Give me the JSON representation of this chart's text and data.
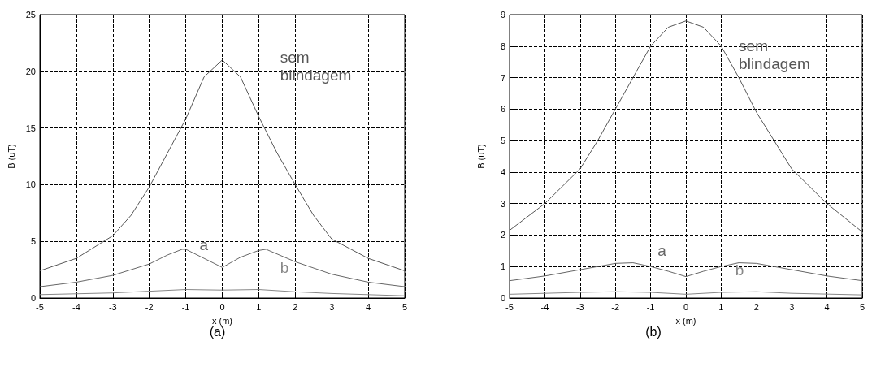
{
  "chart_data": [
    {
      "type": "line",
      "xlabel": "x (m)",
      "ylabel": "B (uT)",
      "xlim": [
        -5,
        5
      ],
      "xticks": [
        -5,
        -4,
        -3,
        -2,
        -1,
        0,
        1,
        2,
        3,
        4,
        5
      ],
      "ylim": [
        0,
        25
      ],
      "yticks": [
        0,
        5,
        10,
        15,
        20,
        25
      ],
      "grid": true,
      "marker": "none",
      "series": [
        {
          "name": "sem blindagem",
          "color": "#555555",
          "x": [
            -5,
            -4,
            -3,
            -2.5,
            -2,
            -1.5,
            -1,
            -0.5,
            0,
            0.5,
            1,
            1.5,
            2,
            2.5,
            3,
            4,
            5
          ],
          "values": [
            2.4,
            3.5,
            5.5,
            7.3,
            9.8,
            12.8,
            15.8,
            19.5,
            21,
            19.5,
            16,
            12.8,
            10,
            7.3,
            5.2,
            3.5,
            2.4
          ]
        },
        {
          "name": "a",
          "color": "#666666",
          "x": [
            -5,
            -4,
            -3,
            -2,
            -1.5,
            -1.1,
            -1,
            -0.5,
            0,
            0.5,
            1,
            1.2,
            2,
            3,
            4,
            5
          ],
          "values": [
            1.0,
            1.4,
            2.0,
            3.0,
            3.8,
            4.3,
            4.3,
            3.5,
            2.7,
            3.6,
            4.2,
            4.3,
            3.2,
            2.1,
            1.4,
            1.0
          ]
        },
        {
          "name": "b",
          "color": "#888888",
          "x": [
            -5,
            -3,
            -2,
            -1,
            0,
            1,
            2,
            3,
            5
          ],
          "values": [
            0.3,
            0.45,
            0.6,
            0.75,
            0.7,
            0.75,
            0.55,
            0.4,
            0.2
          ]
        }
      ],
      "annotations": [
        "(a)"
      ]
    },
    {
      "type": "line",
      "xlabel": "x (m)",
      "ylabel": "B (uT)",
      "xlim": [
        -5,
        5
      ],
      "xticks": [
        -5,
        -4,
        -3,
        -2,
        -1,
        0,
        1,
        2,
        3,
        4,
        5
      ],
      "ylim": [
        0,
        9
      ],
      "yticks": [
        0,
        1,
        2,
        3,
        4,
        5,
        6,
        7,
        8,
        9
      ],
      "grid": true,
      "marker": "none",
      "series": [
        {
          "name": "sem blindagem",
          "color": "#555555",
          "x": [
            -5,
            -4,
            -3,
            -2.5,
            -2,
            -1.5,
            -1,
            -0.5,
            0,
            0.5,
            1,
            1.5,
            2,
            2.5,
            3,
            4,
            5
          ],
          "values": [
            2.15,
            3.0,
            4.1,
            5.0,
            6.0,
            7.0,
            8.0,
            8.6,
            8.8,
            8.6,
            8.0,
            7.0,
            5.9,
            5.0,
            4.1,
            3.0,
            2.1
          ]
        },
        {
          "name": "a",
          "color": "#666666",
          "x": [
            -5,
            -4,
            -3,
            -2,
            -1.5,
            -1,
            -0.5,
            0,
            0.5,
            1,
            1.5,
            2,
            3,
            4,
            5
          ],
          "values": [
            0.55,
            0.7,
            0.9,
            1.1,
            1.12,
            1.0,
            0.85,
            0.68,
            0.85,
            1.0,
            1.12,
            1.1,
            0.9,
            0.7,
            0.55
          ]
        },
        {
          "name": "b",
          "color": "#888888",
          "x": [
            -5,
            -3,
            -2,
            -1,
            0,
            1,
            2,
            3,
            5
          ],
          "values": [
            0.12,
            0.18,
            0.2,
            0.18,
            0.12,
            0.18,
            0.2,
            0.15,
            0.1
          ]
        }
      ],
      "annotations": [
        "(b)"
      ]
    }
  ]
}
